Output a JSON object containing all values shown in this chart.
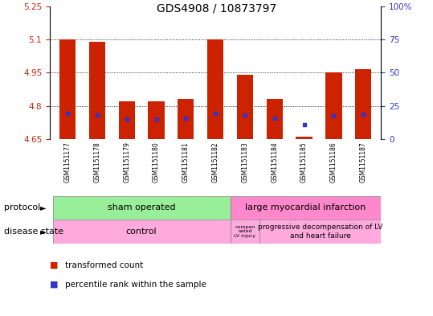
{
  "title": "GDS4908 / 10873797",
  "samples": [
    "GSM1151177",
    "GSM1151178",
    "GSM1151179",
    "GSM1151180",
    "GSM1151181",
    "GSM1151182",
    "GSM1151183",
    "GSM1151184",
    "GSM1151185",
    "GSM1151186",
    "GSM1151187"
  ],
  "bar_tops": [
    5.1,
    5.09,
    4.82,
    4.82,
    4.83,
    5.1,
    4.94,
    4.83,
    4.66,
    4.95,
    4.965
  ],
  "bar_bottom": 4.65,
  "blue_y": [
    4.765,
    4.76,
    4.74,
    4.74,
    4.745,
    4.765,
    4.758,
    4.745,
    4.715,
    4.756,
    4.763
  ],
  "ylim_left": [
    4.65,
    5.25
  ],
  "ylim_right": [
    0,
    100
  ],
  "yticks_left": [
    4.65,
    4.8,
    4.95,
    5.1,
    5.25
  ],
  "yticks_right": [
    0,
    25,
    50,
    75,
    100
  ],
  "ytick_labels_left": [
    "4.65",
    "4.8",
    "4.95",
    "5.1",
    "5.25"
  ],
  "ytick_labels_right": [
    "0",
    "25",
    "50",
    "75",
    "100%"
  ],
  "bar_color": "#cc2200",
  "blue_color": "#3333cc",
  "protocol_labels": [
    "sham operated",
    "large myocardial infarction"
  ],
  "protocol_colors": [
    "#99ee99",
    "#ff88cc"
  ],
  "disease_color": "#ffaadd",
  "legend_items": [
    "transformed count",
    "percentile rank within the sample"
  ],
  "legend_colors": [
    "#cc2200",
    "#3333cc"
  ],
  "tick_label_color_left": "#cc2200",
  "tick_label_color_right": "#3333cc",
  "xtick_bg": "#cccccc"
}
